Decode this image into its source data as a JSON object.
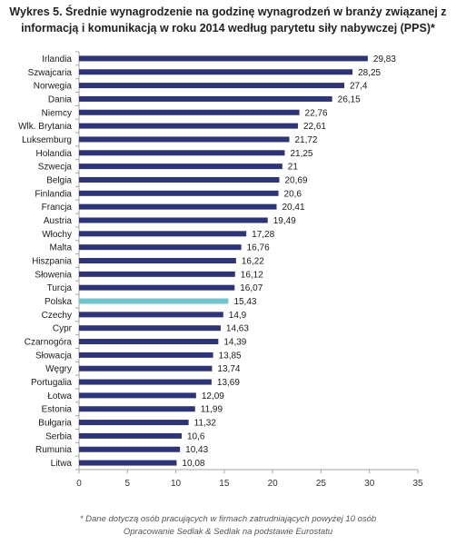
{
  "title_line1": "Wykres 5. Średnie wynagrodzenie na godzinę wynagrodzeń w branży związanej z",
  "title_line2": "informacją i komunikacją w roku 2014 według parytetu siły nabywczej (PPS)*",
  "footnote": "* Dane dotyczą osób pracujących w firmach zatrudniających powyżej 10 osób",
  "source": "Opracowanie Sedlak & Sedlak na podstawie Eurostatu",
  "colors": {
    "bar": "#2e3576",
    "highlight": "#72c4cc",
    "axis": "#a6a6a6"
  },
  "chart_data": {
    "type": "bar",
    "orientation": "horizontal",
    "categories": [
      "Irlandia",
      "Szwajcaria",
      "Norwegia",
      "Dania",
      "Niemcy",
      "Wlk. Brytania",
      "Luksemburg",
      "Holandia",
      "Szwecja",
      "Belgia",
      "Finlandia",
      "Francja",
      "Austria",
      "Włochy",
      "Malta",
      "Hiszpania",
      "Słowenia",
      "Turcja",
      "Polska",
      "Czechy",
      "Cypr",
      "Czarnogóra",
      "Słowacja",
      "Węgry",
      "Portugalia",
      "Łotwa",
      "Estonia",
      "Bułgaria",
      "Serbia",
      "Rumunia",
      "Litwa"
    ],
    "values": [
      29.83,
      28.25,
      27.4,
      26.15,
      22.76,
      22.61,
      21.72,
      21.25,
      21,
      20.69,
      20.6,
      20.41,
      19.49,
      17.28,
      16.76,
      16.22,
      16.12,
      16.07,
      15.43,
      14.9,
      14.63,
      14.39,
      13.85,
      13.74,
      13.69,
      12.09,
      11.99,
      11.32,
      10.6,
      10.43,
      10.08
    ],
    "value_labels": [
      "29,83",
      "28,25",
      "27,4",
      "26,15",
      "22,76",
      "22,61",
      "21,72",
      "21,25",
      "21",
      "20,69",
      "20,6",
      "20,41",
      "19,49",
      "17,28",
      "16,76",
      "16,22",
      "16,12",
      "16,07",
      "15,43",
      "14,9",
      "14,63",
      "14,39",
      "13,85",
      "13,74",
      "13,69",
      "12,09",
      "11,99",
      "11,32",
      "10,6",
      "10,43",
      "10,08"
    ],
    "highlight_category": "Polska",
    "xlim": [
      0,
      35
    ],
    "xticks": [
      0,
      5,
      10,
      15,
      20,
      25,
      30,
      35
    ],
    "grid": false,
    "legend": "none"
  }
}
